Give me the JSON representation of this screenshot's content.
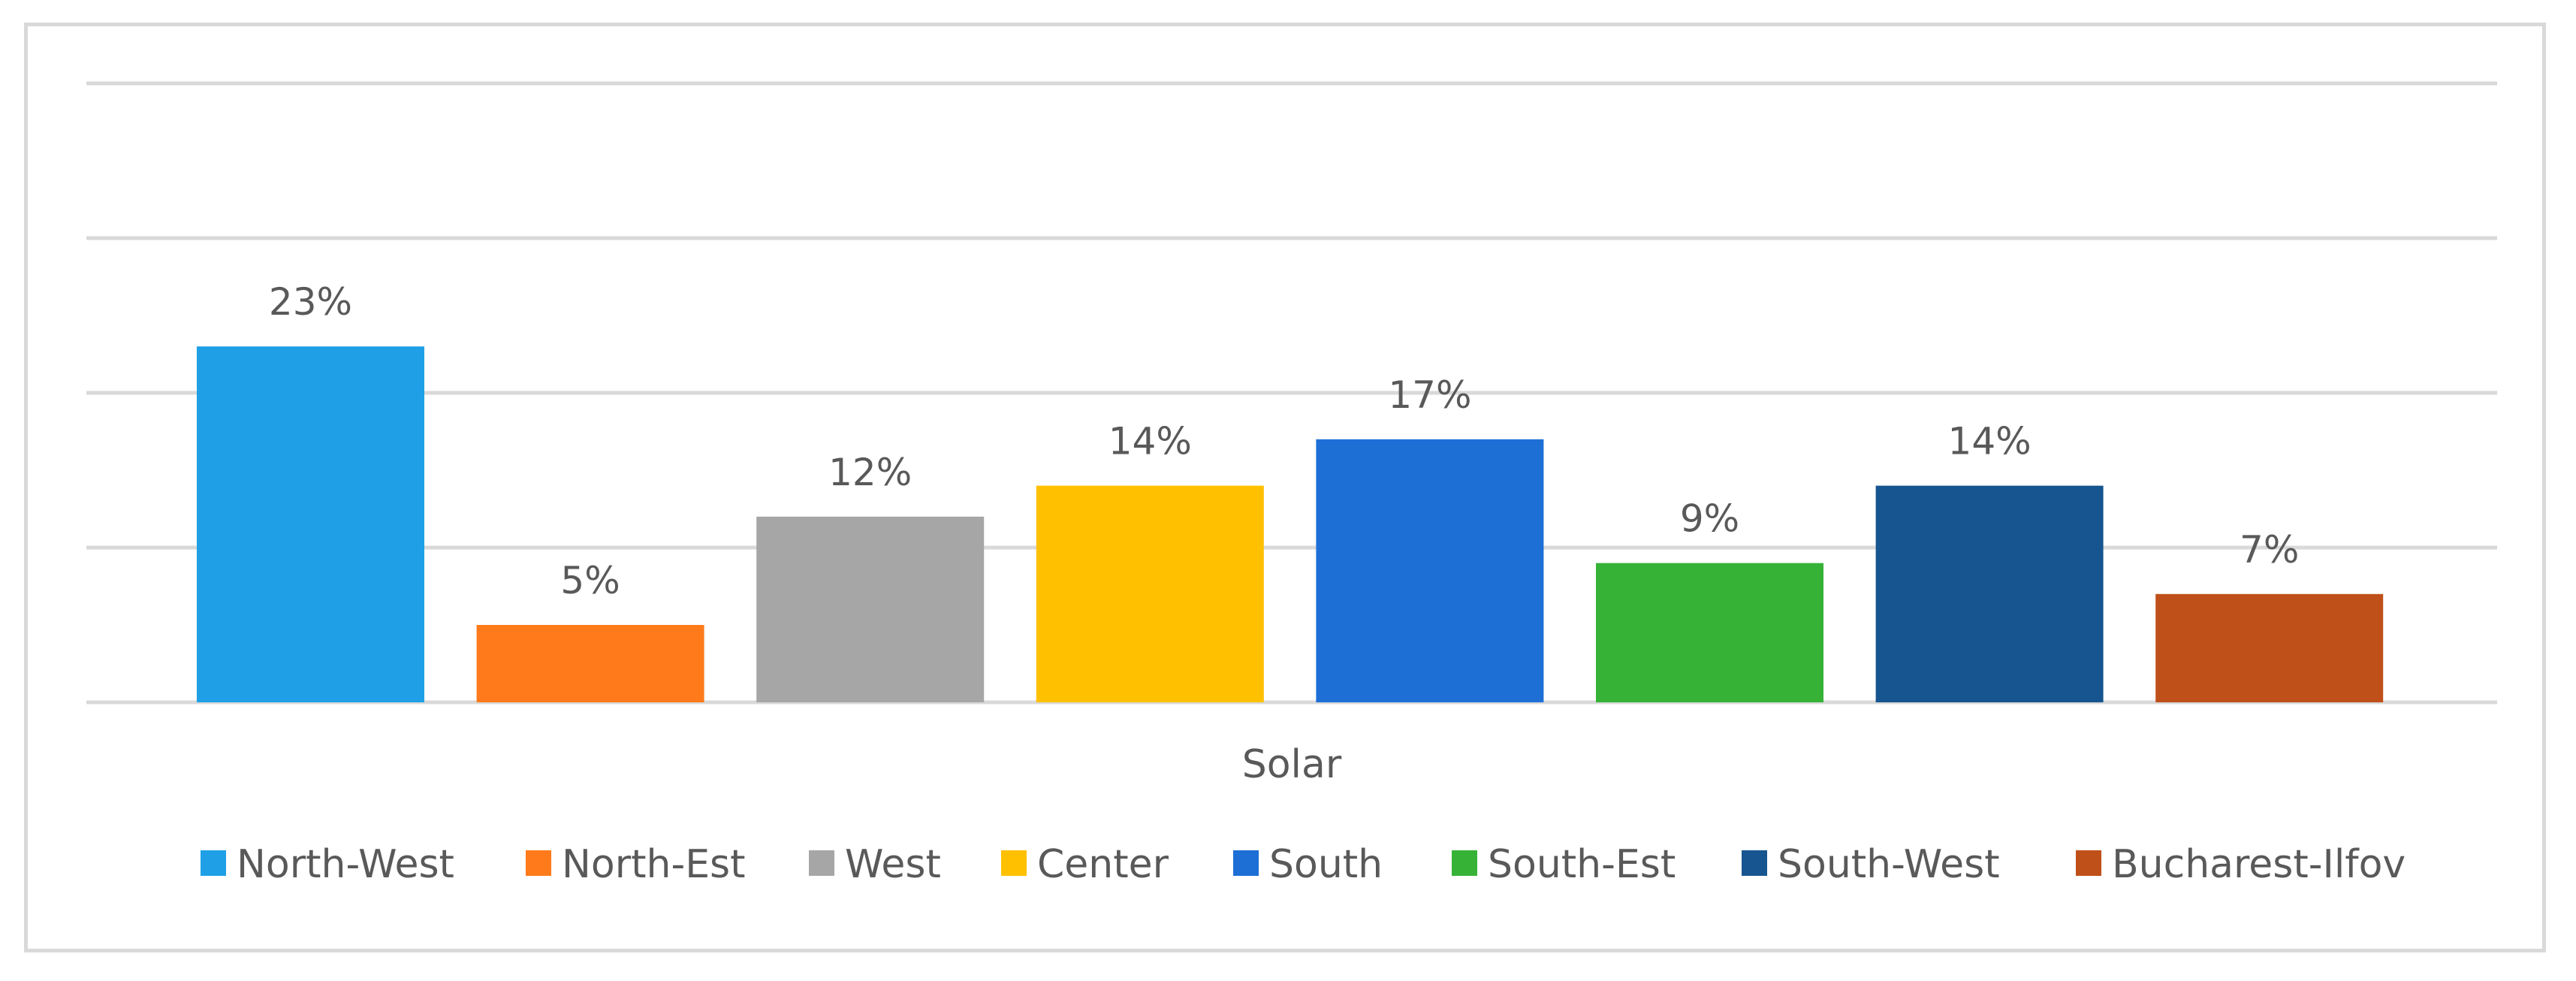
{
  "chart_data": {
    "type": "bar",
    "categories": [
      "Solar"
    ],
    "category_label": "Solar",
    "series": [
      {
        "name": "North-West",
        "values": [
          23
        ],
        "label": "23%",
        "color": "#1fa0e6"
      },
      {
        "name": "North-Est",
        "values": [
          5
        ],
        "label": "5%",
        "color": "#ff7a1a"
      },
      {
        "name": "West",
        "values": [
          12
        ],
        "label": "12%",
        "color": "#a6a6a6"
      },
      {
        "name": "Center",
        "values": [
          14
        ],
        "label": "14%",
        "color": "#ffc000"
      },
      {
        "name": "South",
        "values": [
          17
        ],
        "label": "17%",
        "color": "#1d6fd6"
      },
      {
        "name": "South-Est",
        "values": [
          9
        ],
        "label": "9%",
        "color": "#36b336"
      },
      {
        "name": "South-West",
        "values": [
          14
        ],
        "label": "14%",
        "color": "#16558f"
      },
      {
        "name": "Bucharest-Ilfov",
        "values": [
          7
        ],
        "label": "7%",
        "color": "#c0501a"
      }
    ],
    "ylim": [
      0,
      40
    ],
    "grid": true,
    "legend": "bottom"
  }
}
